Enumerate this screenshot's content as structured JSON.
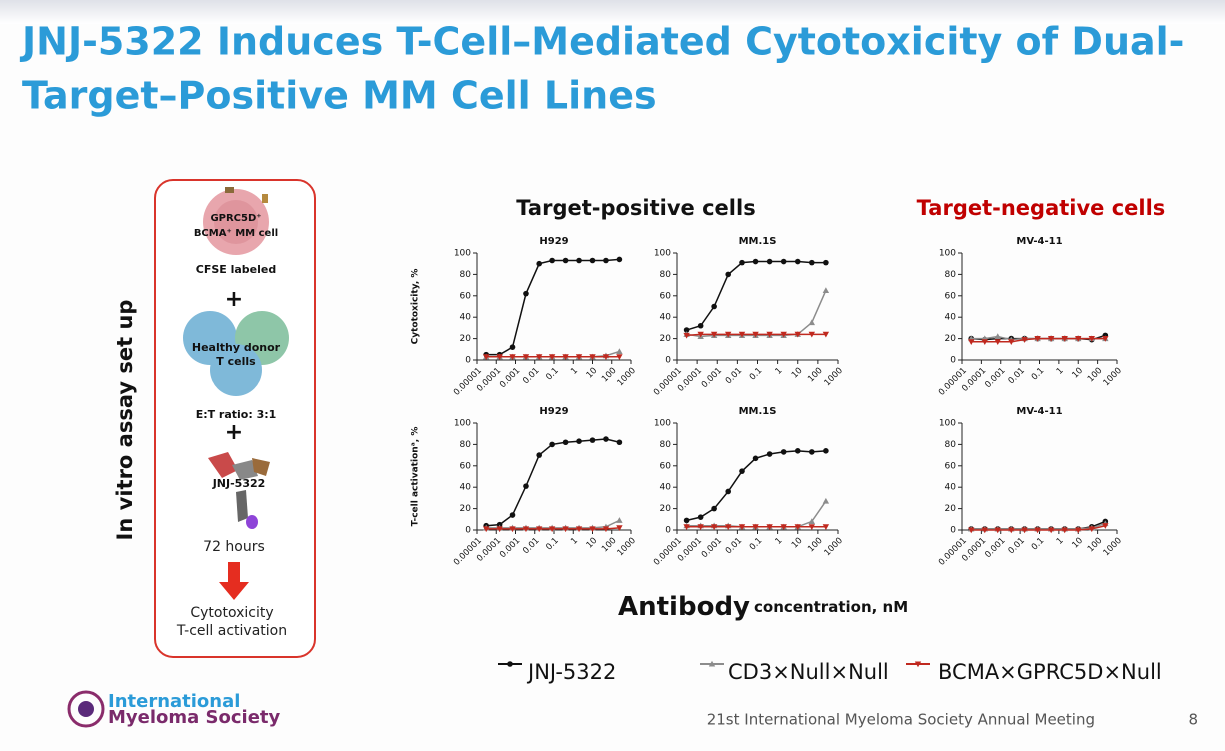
{
  "header": {
    "title_line1": "JNJ-5322 Induces T-Cell–Mediated Cytotoxicity of  Dual-",
    "title_line2": "Target–Positive MM Cell Lines"
  },
  "panel": {
    "heading": "In vitro assay set up",
    "cell_line1": "GPRC5D⁺",
    "cell_line2": "BCMA⁺ MM cell",
    "cfse": "CFSE labeled",
    "plus1": "+",
    "donor_line1": "Healthy donor",
    "donor_line2": "T cells",
    "ratio": "E:T ratio: 3:1",
    "plus2": "+",
    "drug": "JNJ-5322",
    "duration": "72 hours",
    "readout_line1": "Cytotoxicity",
    "readout_line2": "T-cell activation"
  },
  "headings": {
    "positive": "Target-positive cells",
    "negative": "Target-negative cells"
  },
  "x_axis_label": {
    "main": "Antibody",
    "unit": "concentration, nM"
  },
  "footer": {
    "logo_line1": "International",
    "logo_line2": "Myeloma Society",
    "meeting": "21st International Myeloma Society Annual Meeting",
    "page": "8"
  },
  "chart_data": [
    {
      "type": "line",
      "title": "H929",
      "ylabel": "Cytotoxicity, %",
      "xscale": "log",
      "x": [
        3e-05,
        0.00015,
        0.0007,
        0.0035,
        0.017,
        0.08,
        0.4,
        2,
        10,
        50,
        250
      ],
      "xlim": [
        1e-05,
        1000
      ],
      "xticks": [
        1e-05,
        0.0001,
        0.001,
        0.01,
        0.1,
        1,
        10,
        100,
        1000
      ],
      "ylim": [
        0,
        100
      ],
      "yticks": [
        0,
        20,
        40,
        60,
        80,
        100
      ],
      "series": [
        {
          "name": "JNJ-5322",
          "color": "#111111",
          "marker": "circle",
          "values": [
            5,
            5,
            12,
            62,
            90,
            93,
            93,
            93,
            93,
            93,
            94
          ]
        },
        {
          "name": "CD3×Null×Null",
          "color": "#8c8c8c",
          "marker": "triangle-up",
          "values": [
            3,
            3,
            3,
            3,
            3,
            3,
            3,
            3,
            3,
            4,
            8
          ]
        },
        {
          "name": "BCMA×GPRC5D×Null",
          "color": "#c0291f",
          "marker": "triangle-down",
          "values": [
            3,
            3,
            3,
            3,
            3,
            3,
            3,
            3,
            3,
            3,
            3
          ]
        }
      ]
    },
    {
      "type": "line",
      "title": "MM.1S",
      "xscale": "log",
      "x": [
        3e-05,
        0.00015,
        0.0007,
        0.0035,
        0.017,
        0.08,
        0.4,
        2,
        10,
        50,
        250
      ],
      "xlim": [
        1e-05,
        1000
      ],
      "xticks": [
        1e-05,
        0.0001,
        0.001,
        0.01,
        0.1,
        1,
        10,
        100,
        1000
      ],
      "ylim": [
        0,
        100
      ],
      "yticks": [
        0,
        20,
        40,
        60,
        80,
        100
      ],
      "series": [
        {
          "color": "#111111",
          "marker": "circle",
          "values": [
            28,
            32,
            50,
            80,
            91,
            92,
            92,
            92,
            92,
            91,
            91
          ]
        },
        {
          "color": "#8c8c8c",
          "marker": "triangle-up",
          "values": [
            24,
            22,
            23,
            23,
            23,
            23,
            23,
            23,
            24,
            35,
            65
          ]
        },
        {
          "color": "#c0291f",
          "marker": "triangle-down",
          "values": [
            23,
            24,
            24,
            24,
            24,
            24,
            24,
            24,
            24,
            24,
            24
          ]
        }
      ]
    },
    {
      "type": "line",
      "title": "MV-4-11",
      "xscale": "log",
      "x": [
        3e-05,
        0.00015,
        0.0007,
        0.0035,
        0.017,
        0.08,
        0.4,
        2,
        10,
        50,
        250
      ],
      "xlim": [
        1e-05,
        1000
      ],
      "xticks": [
        1e-05,
        0.0001,
        0.001,
        0.01,
        0.1,
        1,
        10,
        100,
        1000
      ],
      "ylim": [
        0,
        100
      ],
      "yticks": [
        0,
        20,
        40,
        60,
        80,
        100
      ],
      "series": [
        {
          "color": "#111111",
          "marker": "circle",
          "values": [
            20,
            19,
            20,
            20,
            20,
            20,
            20,
            20,
            20,
            19,
            23
          ]
        },
        {
          "color": "#8c8c8c",
          "marker": "triangle-up",
          "values": [
            20,
            20,
            22,
            19,
            20,
            20,
            20,
            20,
            20,
            20,
            20
          ]
        },
        {
          "color": "#c0291f",
          "marker": "triangle-down",
          "values": [
            17,
            17,
            17,
            17,
            19,
            20,
            20,
            20,
            20,
            20,
            20
          ]
        }
      ]
    },
    {
      "type": "line",
      "title": "H929",
      "ylabel": "T-cell activationᵃ, %",
      "xscale": "log",
      "x": [
        3e-05,
        0.00015,
        0.0007,
        0.0035,
        0.017,
        0.08,
        0.4,
        2,
        10,
        50,
        250
      ],
      "xlim": [
        1e-05,
        1000
      ],
      "xticks": [
        1e-05,
        0.0001,
        0.001,
        0.01,
        0.1,
        1,
        10,
        100,
        1000
      ],
      "ylim": [
        0,
        100
      ],
      "yticks": [
        0,
        20,
        40,
        60,
        80,
        100
      ],
      "series": [
        {
          "color": "#111111",
          "marker": "circle",
          "values": [
            4,
            5,
            14,
            41,
            70,
            80,
            82,
            83,
            84,
            85,
            82
          ]
        },
        {
          "color": "#8c8c8c",
          "marker": "triangle-up",
          "values": [
            2,
            2,
            2,
            2,
            2,
            2,
            2,
            2,
            2,
            3,
            9
          ]
        },
        {
          "color": "#c0291f",
          "marker": "triangle-down",
          "values": [
            1,
            1,
            1,
            1,
            1,
            1,
            1,
            1,
            1,
            1,
            2
          ]
        }
      ]
    },
    {
      "type": "line",
      "title": "MM.1S",
      "xscale": "log",
      "x": [
        3e-05,
        0.00015,
        0.0007,
        0.0035,
        0.017,
        0.08,
        0.4,
        2,
        10,
        50,
        250
      ],
      "xlim": [
        1e-05,
        1000
      ],
      "xticks": [
        1e-05,
        0.0001,
        0.001,
        0.01,
        0.1,
        1,
        10,
        100,
        1000
      ],
      "ylim": [
        0,
        100
      ],
      "yticks": [
        0,
        20,
        40,
        60,
        80,
        100
      ],
      "series": [
        {
          "color": "#111111",
          "marker": "circle",
          "values": [
            9,
            12,
            20,
            36,
            55,
            67,
            71,
            73,
            74,
            73,
            74
          ]
        },
        {
          "color": "#8c8c8c",
          "marker": "triangle-up",
          "values": [
            4,
            4,
            4,
            4,
            3,
            3,
            3,
            3,
            3,
            8,
            27
          ]
        },
        {
          "color": "#c0291f",
          "marker": "triangle-down",
          "values": [
            3,
            3,
            3,
            3,
            3,
            3,
            3,
            3,
            3,
            3,
            3
          ]
        }
      ]
    },
    {
      "type": "line",
      "title": "MV-4-11",
      "xscale": "log",
      "x": [
        3e-05,
        0.00015,
        0.0007,
        0.0035,
        0.017,
        0.08,
        0.4,
        2,
        10,
        50,
        250
      ],
      "xlim": [
        1e-05,
        1000
      ],
      "xticks": [
        1e-05,
        0.0001,
        0.001,
        0.01,
        0.1,
        1,
        10,
        100,
        1000
      ],
      "ylim": [
        0,
        100
      ],
      "yticks": [
        0,
        20,
        40,
        60,
        80,
        100
      ],
      "series": [
        {
          "color": "#111111",
          "marker": "circle",
          "values": [
            1,
            1,
            1,
            1,
            1,
            1,
            1,
            1,
            1,
            3,
            8
          ]
        },
        {
          "color": "#8c8c8c",
          "marker": "triangle-up",
          "values": [
            1,
            1,
            1,
            1,
            1,
            1,
            1,
            1,
            1,
            2,
            6
          ]
        },
        {
          "color": "#c0291f",
          "marker": "triangle-down",
          "values": [
            0,
            0,
            0,
            0,
            0,
            0,
            0,
            0,
            0,
            1,
            4
          ]
        }
      ]
    }
  ]
}
